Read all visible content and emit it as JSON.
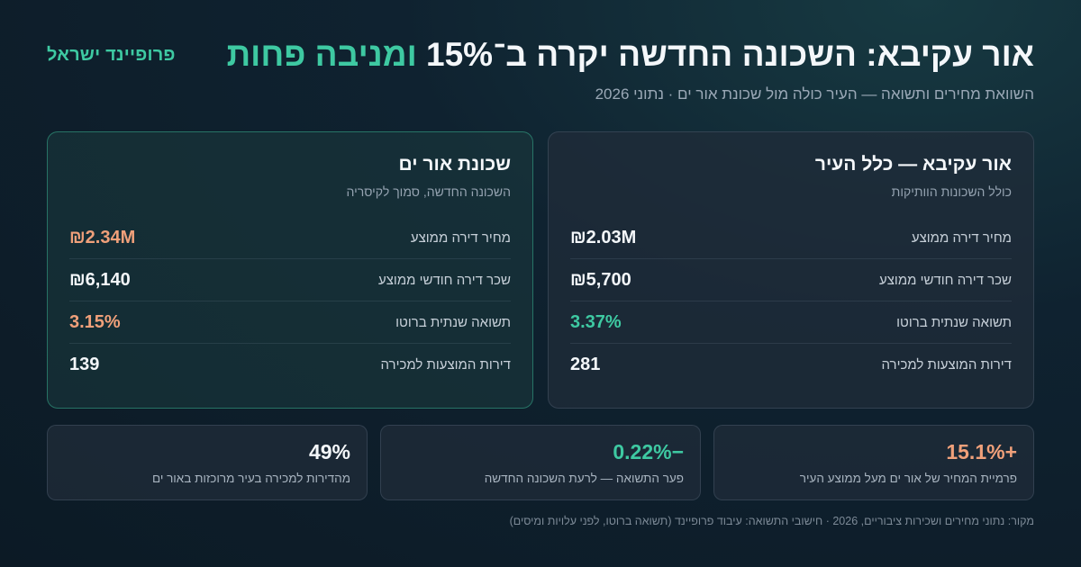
{
  "brand": "פרופיינד ישראל",
  "title": {
    "main": "אור עקיבא: השכונה החדשה יקרה ב־15%",
    "accent": "ומניבה פחות"
  },
  "subtitle": "השוואת מחירים ותשואה — העיר כולה מול שכונת אור ים · נתוני 2026",
  "city_card": {
    "title": "אור עקיבא — כלל העיר",
    "subtitle": "כולל השכונות הוותיקות",
    "rows": [
      {
        "label": "מחיר דירה ממוצע",
        "value": "₪2.03M"
      },
      {
        "label": "שכר דירה חודשי ממוצע",
        "value": "₪5,700"
      },
      {
        "label": "תשואה שנתית ברוטו",
        "value": "3.37%"
      },
      {
        "label": "דירות המוצעות למכירה",
        "value": "281"
      }
    ]
  },
  "hood_card": {
    "title": "שכונת אור ים",
    "subtitle": "השכונה החדשה, סמוך לקיסריה",
    "rows": [
      {
        "label": "מחיר דירה ממוצע",
        "value": "₪2.34M"
      },
      {
        "label": "שכר דירה חודשי ממוצע",
        "value": "₪6,140"
      },
      {
        "label": "תשואה שנתית ברוטו",
        "value": "3.15%"
      },
      {
        "label": "דירות המוצעות למכירה",
        "value": "139"
      }
    ]
  },
  "stats": [
    {
      "value": "+15.1%",
      "desc": "פרמיית המחיר של אור ים מעל ממוצע העיר"
    },
    {
      "value": "−0.22%",
      "desc": "פער התשואה — לרעת השכונה החדשה"
    },
    {
      "value": "49%",
      "desc": "מהדירות למכירה בעיר מרוכזות באור ים"
    }
  ],
  "source": "מקור: נתוני מחירים ושכירות ציבוריים, 2026 · חישובי התשואה: עיבוד פרופיינד (תשואה ברוטו, לפני עלויות ומיסים)",
  "colors": {
    "accent_green": "#3ec9a2",
    "accent_orange": "#f0a07a",
    "background": "#0f2230"
  }
}
